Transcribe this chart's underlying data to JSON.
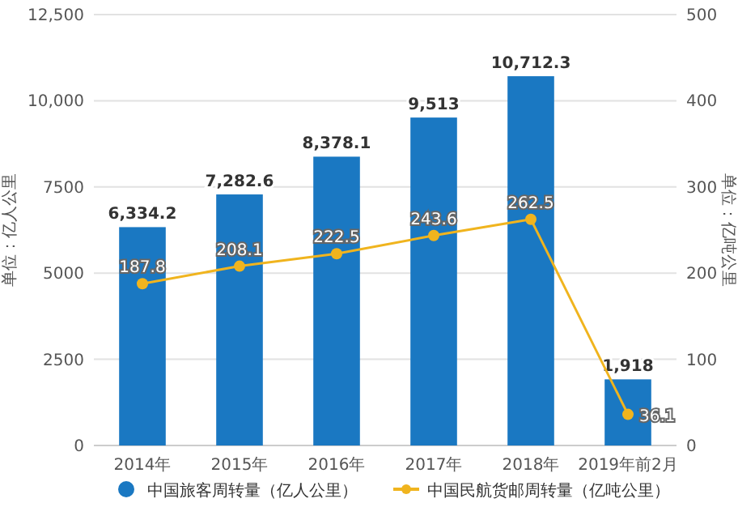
{
  "chart_data": {
    "type": "bar",
    "ylabel": "单位：亿人公里",
    "y2label": "单位：亿吨公里",
    "categories": [
      "2014年",
      "2015年",
      "2016年",
      "2017年",
      "2018年",
      "2019年前2月"
    ],
    "series": [
      {
        "name": "中国旅客周转量（亿人公里）",
        "color": "#1a78c2",
        "values": [
          6334.2,
          7282.6,
          8378.1,
          9513,
          10712.3,
          1918
        ],
        "value_labels": [
          "6,334.2",
          "7,282.6",
          "8,378.1",
          "9,513",
          "10,712.3",
          "1,918"
        ]
      },
      {
        "name": "中国民航货邮周转量（亿吨公里）",
        "type": "line",
        "axis": "y2",
        "color": "#f0b41e",
        "marker": "circle",
        "values": [
          187.8,
          208.1,
          222.5,
          243.6,
          262.5,
          36.1
        ],
        "value_labels": [
          "187.8",
          "208.1",
          "222.5",
          "243.6",
          "262.5",
          "36.1"
        ]
      }
    ],
    "ylim": [
      0,
      12500
    ],
    "yticks": [
      0,
      2500,
      5000,
      7500,
      {
        "value": 10000,
        "label": "10,000"
      },
      {
        "value": 12500,
        "label": "12,500"
      }
    ],
    "y2lim": [
      0,
      500
    ],
    "y2ticks": [
      0,
      100,
      200,
      300,
      400,
      500
    ],
    "grid": "y",
    "legend": "bottom"
  }
}
